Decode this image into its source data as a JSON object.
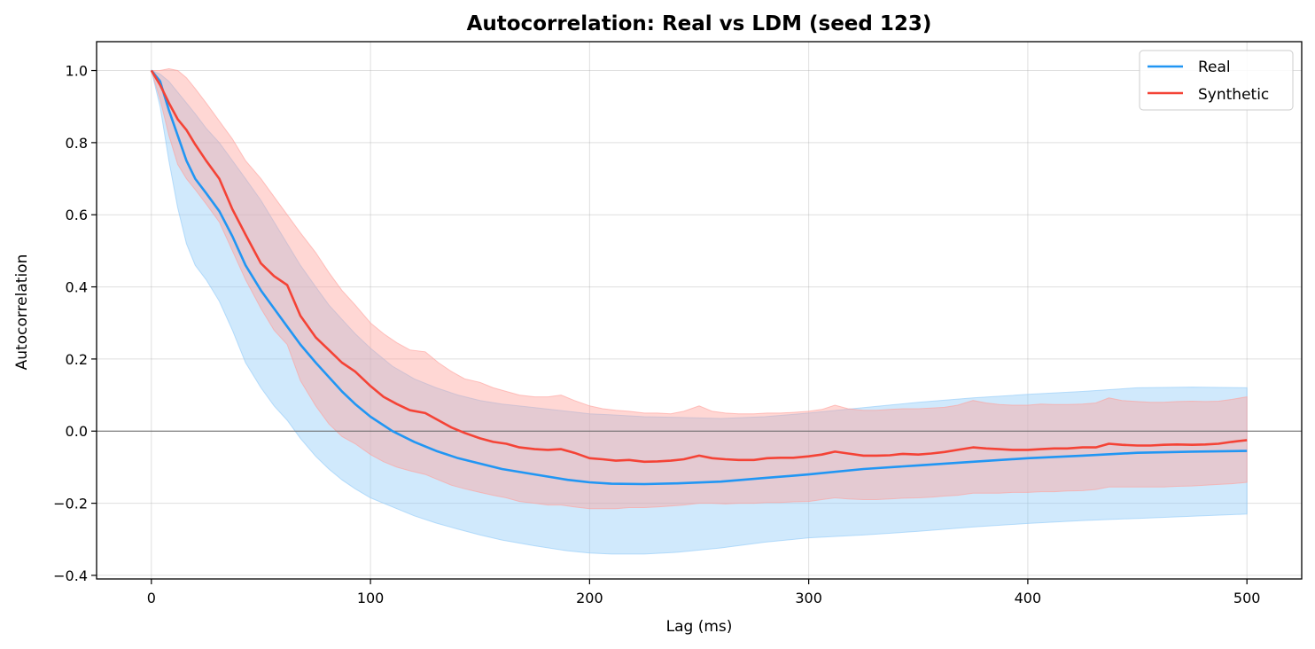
{
  "chart_data": {
    "type": "line",
    "title": "Autocorrelation: Real vs LDM (seed 123)",
    "xlabel": "Lag (ms)",
    "ylabel": "Autocorrelation",
    "xlim": [
      -25,
      525
    ],
    "ylim": [
      -0.41,
      1.08
    ],
    "xticks": [
      0,
      100,
      200,
      300,
      400,
      500
    ],
    "xtick_labels": [
      "0",
      "100",
      "200",
      "300",
      "400",
      "500"
    ],
    "yticks": [
      -0.4,
      -0.2,
      0.0,
      0.2,
      0.4,
      0.6,
      0.8,
      1.0
    ],
    "ytick_labels": [
      "−0.4",
      "−0.2",
      "0.0",
      "0.2",
      "0.4",
      "0.6",
      "0.8",
      "1.0"
    ],
    "grid": true,
    "zero_line": true,
    "legend_position": "top-right",
    "series": [
      {
        "name": "Real",
        "color": "#2196f3",
        "band_color": "#90caf9",
        "x": [
          0,
          4,
          8,
          12,
          16,
          20,
          25,
          31,
          37,
          43,
          50,
          56,
          62,
          68,
          75,
          81,
          87,
          93,
          100,
          110,
          120,
          130,
          140,
          150,
          160,
          175,
          190,
          200,
          210,
          225,
          240,
          260,
          280,
          300,
          325,
          350,
          375,
          400,
          425,
          450,
          475,
          500
        ],
        "values": [
          1.0,
          0.97,
          0.89,
          0.82,
          0.75,
          0.7,
          0.66,
          0.61,
          0.54,
          0.46,
          0.39,
          0.34,
          0.29,
          0.24,
          0.19,
          0.15,
          0.11,
          0.075,
          0.04,
          0.0,
          -0.03,
          -0.055,
          -0.075,
          -0.09,
          -0.105,
          -0.12,
          -0.135,
          -0.142,
          -0.146,
          -0.147,
          -0.145,
          -0.14,
          -0.13,
          -0.12,
          -0.105,
          -0.095,
          -0.085,
          -0.075,
          -0.068,
          -0.06,
          -0.057,
          -0.055
        ],
        "upper": [
          1.0,
          0.99,
          0.97,
          0.94,
          0.91,
          0.88,
          0.84,
          0.8,
          0.75,
          0.7,
          0.64,
          0.58,
          0.52,
          0.46,
          0.4,
          0.35,
          0.31,
          0.27,
          0.23,
          0.18,
          0.145,
          0.12,
          0.1,
          0.085,
          0.075,
          0.065,
          0.055,
          0.048,
          0.045,
          0.04,
          0.038,
          0.035,
          0.04,
          0.05,
          0.065,
          0.08,
          0.092,
          0.102,
          0.11,
          0.12,
          0.122,
          0.12
        ],
        "lower": [
          1.0,
          0.9,
          0.75,
          0.62,
          0.52,
          0.46,
          0.42,
          0.36,
          0.28,
          0.19,
          0.12,
          0.07,
          0.03,
          -0.02,
          -0.07,
          -0.105,
          -0.135,
          -0.16,
          -0.185,
          -0.21,
          -0.235,
          -0.255,
          -0.272,
          -0.288,
          -0.302,
          -0.318,
          -0.332,
          -0.338,
          -0.341,
          -0.341,
          -0.336,
          -0.324,
          -0.308,
          -0.296,
          -0.288,
          -0.278,
          -0.266,
          -0.256,
          -0.248,
          -0.242,
          -0.236,
          -0.23
        ]
      },
      {
        "name": "Synthetic",
        "color": "#f44336",
        "band_color": "#ff9f99",
        "x": [
          0,
          4,
          8,
          12,
          16,
          20,
          25,
          31,
          37,
          43,
          50,
          56,
          62,
          68,
          75,
          81,
          87,
          93,
          100,
          106,
          112,
          118,
          125,
          131,
          137,
          143,
          150,
          156,
          162,
          168,
          175,
          181,
          187,
          193,
          200,
          206,
          212,
          218,
          225,
          231,
          237,
          243,
          250,
          256,
          262,
          268,
          275,
          281,
          287,
          293,
          300,
          306,
          312,
          318,
          325,
          331,
          337,
          343,
          350,
          356,
          362,
          368,
          375,
          381,
          387,
          393,
          400,
          406,
          412,
          418,
          425,
          431,
          437,
          443,
          450,
          456,
          462,
          468,
          475,
          481,
          487,
          493,
          500
        ],
        "values": [
          1.0,
          0.96,
          0.91,
          0.865,
          0.835,
          0.795,
          0.75,
          0.7,
          0.615,
          0.545,
          0.465,
          0.43,
          0.405,
          0.32,
          0.26,
          0.225,
          0.19,
          0.165,
          0.125,
          0.095,
          0.075,
          0.058,
          0.05,
          0.03,
          0.01,
          -0.005,
          -0.02,
          -0.03,
          -0.035,
          -0.045,
          -0.05,
          -0.052,
          -0.05,
          -0.06,
          -0.075,
          -0.078,
          -0.082,
          -0.08,
          -0.085,
          -0.084,
          -0.082,
          -0.078,
          -0.068,
          -0.075,
          -0.078,
          -0.08,
          -0.08,
          -0.075,
          -0.074,
          -0.074,
          -0.07,
          -0.065,
          -0.057,
          -0.062,
          -0.068,
          -0.068,
          -0.067,
          -0.063,
          -0.065,
          -0.062,
          -0.058,
          -0.052,
          -0.045,
          -0.048,
          -0.05,
          -0.052,
          -0.052,
          -0.05,
          -0.048,
          -0.048,
          -0.045,
          -0.045,
          -0.035,
          -0.038,
          -0.04,
          -0.04,
          -0.038,
          -0.037,
          -0.038,
          -0.037,
          -0.035,
          -0.03,
          -0.025
        ],
        "upper": [
          1.0,
          1.0,
          1.005,
          1.0,
          0.98,
          0.95,
          0.91,
          0.86,
          0.81,
          0.75,
          0.7,
          0.65,
          0.6,
          0.55,
          0.495,
          0.44,
          0.39,
          0.35,
          0.3,
          0.27,
          0.245,
          0.225,
          0.22,
          0.19,
          0.165,
          0.145,
          0.135,
          0.12,
          0.11,
          0.1,
          0.095,
          0.095,
          0.1,
          0.085,
          0.07,
          0.062,
          0.058,
          0.055,
          0.05,
          0.05,
          0.048,
          0.055,
          0.07,
          0.055,
          0.05,
          0.048,
          0.048,
          0.05,
          0.05,
          0.052,
          0.055,
          0.06,
          0.072,
          0.062,
          0.058,
          0.058,
          0.06,
          0.062,
          0.062,
          0.064,
          0.066,
          0.072,
          0.085,
          0.078,
          0.074,
          0.072,
          0.072,
          0.075,
          0.074,
          0.074,
          0.075,
          0.078,
          0.092,
          0.085,
          0.082,
          0.08,
          0.08,
          0.082,
          0.083,
          0.082,
          0.083,
          0.088,
          0.095
        ],
        "lower": [
          1.0,
          0.92,
          0.82,
          0.74,
          0.7,
          0.67,
          0.63,
          0.58,
          0.5,
          0.42,
          0.34,
          0.28,
          0.24,
          0.14,
          0.07,
          0.02,
          -0.015,
          -0.035,
          -0.065,
          -0.085,
          -0.1,
          -0.11,
          -0.12,
          -0.135,
          -0.15,
          -0.16,
          -0.17,
          -0.178,
          -0.185,
          -0.195,
          -0.2,
          -0.205,
          -0.205,
          -0.21,
          -0.215,
          -0.215,
          -0.215,
          -0.212,
          -0.212,
          -0.21,
          -0.208,
          -0.205,
          -0.2,
          -0.2,
          -0.202,
          -0.2,
          -0.2,
          -0.198,
          -0.198,
          -0.196,
          -0.195,
          -0.19,
          -0.185,
          -0.188,
          -0.19,
          -0.19,
          -0.188,
          -0.186,
          -0.185,
          -0.183,
          -0.18,
          -0.178,
          -0.172,
          -0.172,
          -0.172,
          -0.17,
          -0.17,
          -0.168,
          -0.168,
          -0.166,
          -0.165,
          -0.162,
          -0.155,
          -0.155,
          -0.155,
          -0.155,
          -0.155,
          -0.153,
          -0.152,
          -0.15,
          -0.148,
          -0.146,
          -0.142
        ]
      }
    ]
  }
}
